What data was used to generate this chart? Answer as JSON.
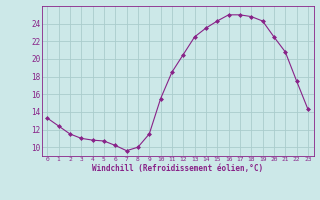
{
  "x": [
    0,
    1,
    2,
    3,
    4,
    5,
    6,
    7,
    8,
    9,
    10,
    11,
    12,
    13,
    14,
    15,
    16,
    17,
    18,
    19,
    20,
    21,
    22,
    23
  ],
  "y": [
    13.3,
    12.4,
    11.5,
    11.0,
    10.8,
    10.7,
    10.2,
    9.6,
    10.0,
    11.5,
    15.5,
    18.5,
    20.5,
    22.5,
    23.5,
    24.3,
    25.0,
    25.0,
    24.8,
    24.3,
    22.5,
    20.8,
    17.5,
    14.3
  ],
  "line_color": "#882288",
  "marker": "D",
  "marker_size": 2.0,
  "background_color": "#cce8e8",
  "grid_color": "#aacccc",
  "xlabel": "Windchill (Refroidissement éolien,°C)",
  "xlabel_color": "#882288",
  "tick_color": "#882288",
  "spine_color": "#882288",
  "ylim": [
    9.0,
    26.0
  ],
  "yticks": [
    10,
    12,
    14,
    16,
    18,
    20,
    22,
    24
  ],
  "xticks": [
    0,
    1,
    2,
    3,
    4,
    5,
    6,
    7,
    8,
    9,
    10,
    11,
    12,
    13,
    14,
    15,
    16,
    17,
    18,
    19,
    20,
    21,
    22,
    23
  ]
}
